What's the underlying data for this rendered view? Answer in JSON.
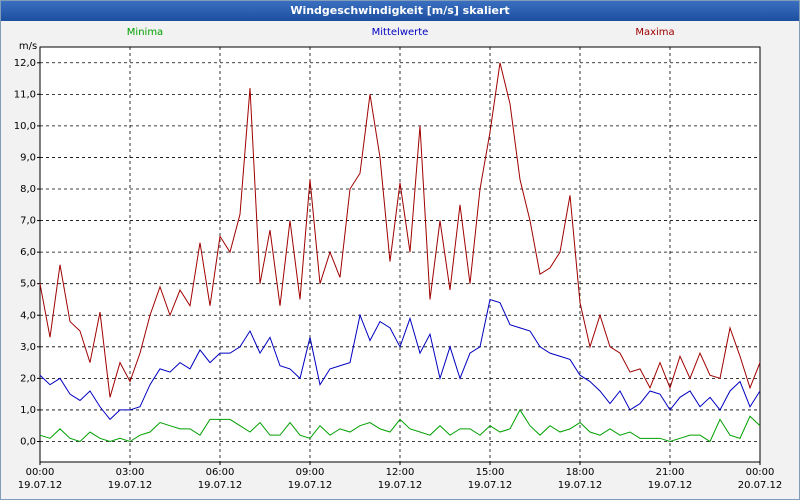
{
  "chart_data": {
    "type": "line",
    "title": "Windgeschwindigkeit [m/s] skaliert",
    "y_label": "m/s",
    "legend": "top",
    "grid": true,
    "xlim": [
      0,
      1440
    ],
    "ylim": [
      -0.65,
      12.5
    ],
    "xticks": [
      {
        "value": 0,
        "label": "00:00\n19.07.12"
      },
      {
        "value": 180,
        "label": "03:00\n19.07.12"
      },
      {
        "value": 360,
        "label": "06:00\n19.07.12"
      },
      {
        "value": 540,
        "label": "09:00\n19.07.12"
      },
      {
        "value": 720,
        "label": "12:00\n19.07.12"
      },
      {
        "value": 900,
        "label": "15:00\n19.07.12"
      },
      {
        "value": 1080,
        "label": "18:00\n19.07.12"
      },
      {
        "value": 1260,
        "label": "21:00\n19.07.12"
      },
      {
        "value": 1440,
        "label": "00:00\n20.07.12"
      }
    ],
    "yticks": [
      {
        "value": 0,
        "label": "0,0"
      },
      {
        "value": 1,
        "label": "1,0"
      },
      {
        "value": 2,
        "label": "2,0"
      },
      {
        "value": 3,
        "label": "3,0"
      },
      {
        "value": 4,
        "label": "4,0"
      },
      {
        "value": 5,
        "label": "5,0"
      },
      {
        "value": 6,
        "label": "6,0"
      },
      {
        "value": 7,
        "label": "7,0"
      },
      {
        "value": 8,
        "label": "8,0"
      },
      {
        "value": 9,
        "label": "9,0"
      },
      {
        "value": 10,
        "label": "10,0"
      },
      {
        "value": 11,
        "label": "11,0"
      },
      {
        "value": 12,
        "label": "12,0"
      }
    ],
    "x": [
      0,
      20,
      40,
      60,
      80,
      100,
      120,
      140,
      160,
      180,
      200,
      220,
      240,
      260,
      280,
      300,
      320,
      340,
      360,
      380,
      400,
      420,
      440,
      460,
      480,
      500,
      520,
      540,
      560,
      580,
      600,
      620,
      640,
      660,
      680,
      700,
      720,
      740,
      760,
      780,
      800,
      820,
      840,
      860,
      880,
      900,
      920,
      940,
      960,
      980,
      1000,
      1020,
      1040,
      1060,
      1080,
      1100,
      1120,
      1140,
      1160,
      1180,
      1200,
      1220,
      1240,
      1260,
      1280,
      1300,
      1320,
      1340,
      1360,
      1380,
      1400,
      1420,
      1440
    ],
    "series": [
      {
        "name": "Minima",
        "color": "#00a000",
        "values": [
          0.2,
          0.1,
          0.4,
          0.1,
          0.0,
          0.3,
          0.1,
          0.0,
          0.1,
          0.0,
          0.2,
          0.3,
          0.6,
          0.5,
          0.4,
          0.4,
          0.2,
          0.7,
          0.7,
          0.7,
          0.5,
          0.3,
          0.6,
          0.2,
          0.2,
          0.6,
          0.2,
          0.1,
          0.5,
          0.2,
          0.4,
          0.3,
          0.5,
          0.6,
          0.4,
          0.3,
          0.7,
          0.4,
          0.3,
          0.2,
          0.5,
          0.2,
          0.4,
          0.4,
          0.2,
          0.5,
          0.3,
          0.4,
          1.0,
          0.5,
          0.2,
          0.5,
          0.3,
          0.4,
          0.6,
          0.3,
          0.2,
          0.4,
          0.2,
          0.3,
          0.1,
          0.1,
          0.1,
          0.0,
          0.1,
          0.2,
          0.2,
          0.0,
          0.7,
          0.2,
          0.1,
          0.8,
          0.5
        ]
      },
      {
        "name": "Mittelwerte",
        "color": "#0000c0",
        "values": [
          2.1,
          1.8,
          2.0,
          1.5,
          1.3,
          1.6,
          1.1,
          0.7,
          1.0,
          1.0,
          1.1,
          1.8,
          2.3,
          2.2,
          2.5,
          2.3,
          2.9,
          2.5,
          2.8,
          2.8,
          3.0,
          3.5,
          2.8,
          3.3,
          2.4,
          2.3,
          2.0,
          3.3,
          1.8,
          2.3,
          2.4,
          2.5,
          4.0,
          3.2,
          3.8,
          3.6,
          3.0,
          3.9,
          2.8,
          3.4,
          2.0,
          3.0,
          2.0,
          2.8,
          3.0,
          4.5,
          4.4,
          3.7,
          3.6,
          3.5,
          3.0,
          2.8,
          2.7,
          2.6,
          2.1,
          1.9,
          1.6,
          1.2,
          1.6,
          1.0,
          1.2,
          1.6,
          1.5,
          1.0,
          1.4,
          1.6,
          1.1,
          1.4,
          1.0,
          1.6,
          1.9,
          1.1,
          1.6
        ]
      },
      {
        "name": "Maxima",
        "color": "#a00000",
        "values": [
          5.0,
          3.3,
          5.6,
          3.8,
          3.5,
          2.5,
          4.1,
          1.4,
          2.5,
          1.9,
          2.8,
          4.0,
          4.9,
          4.0,
          4.8,
          4.3,
          6.3,
          4.3,
          6.5,
          6.0,
          7.2,
          11.2,
          5.0,
          6.7,
          4.3,
          7.0,
          4.5,
          8.3,
          5.0,
          6.0,
          5.2,
          8.0,
          8.5,
          11.0,
          9.0,
          5.7,
          8.2,
          6.0,
          10.0,
          4.5,
          7.0,
          4.8,
          7.5,
          5.0,
          8.0,
          9.8,
          12.0,
          10.7,
          8.3,
          7.0,
          5.3,
          5.5,
          6.0,
          7.8,
          4.4,
          3.0,
          4.0,
          3.0,
          2.8,
          2.2,
          2.3,
          1.7,
          2.5,
          1.7,
          2.7,
          2.0,
          2.8,
          2.1,
          2.0,
          3.6,
          2.7,
          1.7,
          2.5
        ]
      }
    ]
  }
}
